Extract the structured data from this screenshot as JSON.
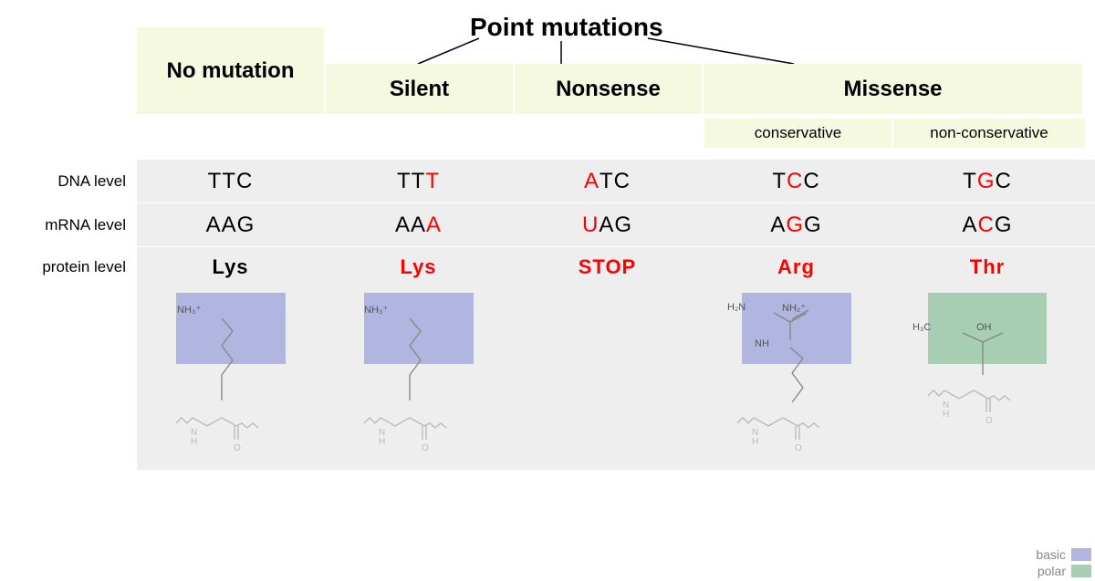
{
  "title": "Point mutations",
  "headers": {
    "no_mutation": "No mutation",
    "silent": "Silent",
    "nonsense": "Nonsense",
    "missense": "Missense",
    "conservative": "conservative",
    "non_conservative": "non-conservative"
  },
  "row_labels": {
    "dna": "DNA level",
    "mrna": "mRNA level",
    "protein": "protein level"
  },
  "columns": [
    {
      "key": "no_mutation",
      "dna": [
        [
          "T",
          "blk"
        ],
        [
          "T",
          "blk"
        ],
        [
          "C",
          "blk"
        ]
      ],
      "mrna": [
        [
          "A",
          "blk"
        ],
        [
          "A",
          "blk"
        ],
        [
          "G",
          "blk"
        ]
      ],
      "protein": {
        "text": "Lys",
        "color": "blk"
      },
      "structure": "lysine",
      "box": "basic"
    },
    {
      "key": "silent",
      "dna": [
        [
          "T",
          "blk"
        ],
        [
          "T",
          "blk"
        ],
        [
          "T",
          "red"
        ]
      ],
      "mrna": [
        [
          "A",
          "blk"
        ],
        [
          "A",
          "blk"
        ],
        [
          "A",
          "red"
        ]
      ],
      "protein": {
        "text": "Lys",
        "color": "red"
      },
      "structure": "lysine",
      "box": "basic"
    },
    {
      "key": "nonsense",
      "dna": [
        [
          "A",
          "red"
        ],
        [
          "T",
          "blk"
        ],
        [
          "C",
          "blk"
        ]
      ],
      "mrna": [
        [
          "U",
          "red"
        ],
        [
          "A",
          "blk"
        ],
        [
          "G",
          "blk"
        ]
      ],
      "protein": {
        "text": "STOP",
        "color": "red"
      },
      "structure": "none",
      "box": "none"
    },
    {
      "key": "conservative",
      "dna": [
        [
          "T",
          "blk"
        ],
        [
          "C",
          "red"
        ],
        [
          "C",
          "blk"
        ]
      ],
      "mrna": [
        [
          "A",
          "blk"
        ],
        [
          "G",
          "red"
        ],
        [
          "G",
          "blk"
        ]
      ],
      "protein": {
        "text": "Arg",
        "color": "red"
      },
      "structure": "arginine",
      "box": "basic"
    },
    {
      "key": "non_conservative",
      "dna": [
        [
          "T",
          "blk"
        ],
        [
          "G",
          "red"
        ],
        [
          "C",
          "blk"
        ]
      ],
      "mrna": [
        [
          "A",
          "blk"
        ],
        [
          "C",
          "red"
        ],
        [
          "G",
          "blk"
        ]
      ],
      "protein": {
        "text": "Thr",
        "color": "red"
      },
      "structure": "threonine",
      "box": "polar"
    }
  ],
  "chem_labels": {
    "nh3": "NH₃⁺",
    "h2n": "H₂N",
    "nh2": "NH₂⁺",
    "nh": "NH",
    "n": "N",
    "h": "H",
    "h3c": "H₃C",
    "oh": "OH",
    "o": "O"
  },
  "legend": {
    "basic": {
      "label": "basic",
      "color": "#b0b6df"
    },
    "polar": {
      "label": "polar",
      "color": "#a7ceb2"
    }
  },
  "colors": {
    "header_bg": "#f5f9df",
    "table_bg": "#eeeeee",
    "red": "#ff0000",
    "black": "#000000",
    "chem_stroke": "#888888",
    "chem_stroke_light": "#bbbbbb"
  }
}
